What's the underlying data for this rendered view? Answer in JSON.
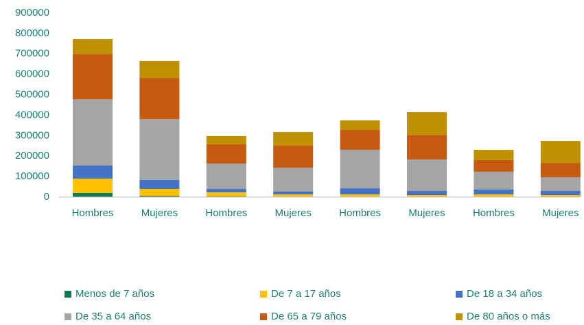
{
  "chart_data": {
    "type": "stacked_bar",
    "categories": [
      "Hombres",
      "Mujeres",
      "Hombres",
      "Mujeres",
      "Hombres",
      "Mujeres",
      "Hombres",
      "Mujeres"
    ],
    "series": [
      {
        "name": "Menos de 7 años",
        "color": "#0e7a52",
        "values": [
          20000,
          5000,
          3000,
          2000,
          2000,
          2000,
          2000,
          2000
        ]
      },
      {
        "name": "De 7 a 17 años",
        "color": "#ffc000",
        "values": [
          70000,
          35000,
          20000,
          11000,
          11000,
          8000,
          11000,
          8000
        ]
      },
      {
        "name": "De 18 a 34 años",
        "color": "#4472c4",
        "values": [
          64000,
          44000,
          17000,
          14000,
          30000,
          20000,
          24000,
          20000
        ]
      },
      {
        "name": "De 35 a 64 años",
        "color": "#a5a5a5",
        "values": [
          324000,
          297000,
          124000,
          117000,
          188000,
          154000,
          87000,
          67000
        ]
      },
      {
        "name": "De 65 a 79 años",
        "color": "#c55a11",
        "values": [
          221000,
          201000,
          94000,
          107000,
          97000,
          120000,
          57000,
          70000
        ]
      },
      {
        "name": "De 80 años o más",
        "color": "#bf9000",
        "values": [
          74000,
          84000,
          40000,
          67000,
          47000,
          111000,
          50000,
          107000
        ]
      }
    ],
    "ylim": [
      0,
      900000
    ],
    "yticks": [
      0,
      100000,
      200000,
      300000,
      400000,
      500000,
      600000,
      700000,
      800000,
      900000
    ],
    "grid": false
  }
}
